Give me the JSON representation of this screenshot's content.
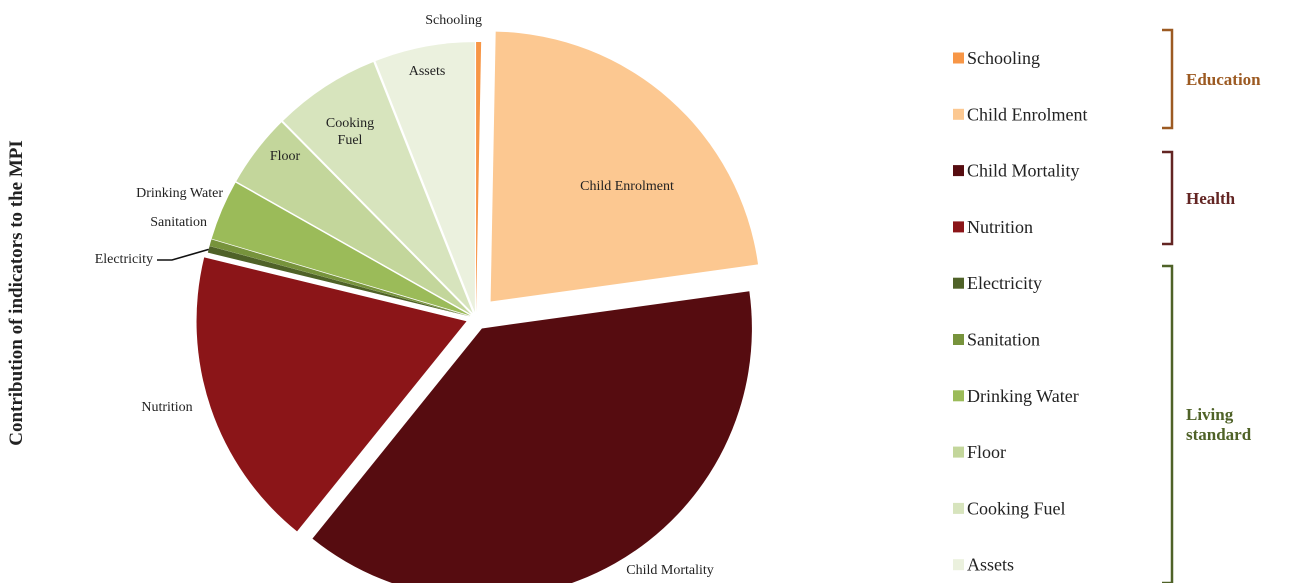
{
  "chart_data": {
    "type": "pie",
    "title": "",
    "ylabel": "Contribution of indicators to the MPI",
    "slices": [
      {
        "name": "Schooling",
        "label": "Schooling",
        "value": 0.3,
        "color": "#F79646"
      },
      {
        "name": "Child Enrolment",
        "label": "Child Enrolment",
        "value": 22.5,
        "color": "#FCC891"
      },
      {
        "name": "Child Mortality",
        "label": "Child Mortality",
        "value": 38.0,
        "color": "#560C10"
      },
      {
        "name": "Nutrition",
        "label": "Nutrition",
        "value": 18.0,
        "color": "#8B1518"
      },
      {
        "name": "Electricity",
        "label": "Electricity",
        "value": 0.4,
        "color": "#4F6228"
      },
      {
        "name": "Sanitation",
        "label": "Sanitation",
        "value": 0.4,
        "color": "#77933C"
      },
      {
        "name": "Drinking Water",
        "label": "Drinking Water",
        "value": 3.6,
        "color": "#9BBB59"
      },
      {
        "name": "Floor",
        "label": "Floor",
        "value": 4.4,
        "color": "#C3D69B"
      },
      {
        "name": "Cooking Fuel",
        "label": "Cooking Fuel",
        "value": 6.4,
        "color": "#D7E4BD"
      },
      {
        "name": "Assets",
        "label": "Assets",
        "value": 6.0,
        "color": "#EBF1DE"
      }
    ],
    "legend_position": "right",
    "groups": [
      {
        "name": "Education",
        "members": [
          "Schooling",
          "Child Enrolment"
        ],
        "color": "#9C5A22"
      },
      {
        "name": "Health",
        "members": [
          "Child Mortality",
          "Nutrition"
        ],
        "color": "#632523"
      },
      {
        "name": "Living standard",
        "members": [
          "Electricity",
          "Sanitation",
          "Drinking Water",
          "Floor",
          "Cooking Fuel",
          "Assets"
        ],
        "color": "#4F6228"
      }
    ]
  }
}
